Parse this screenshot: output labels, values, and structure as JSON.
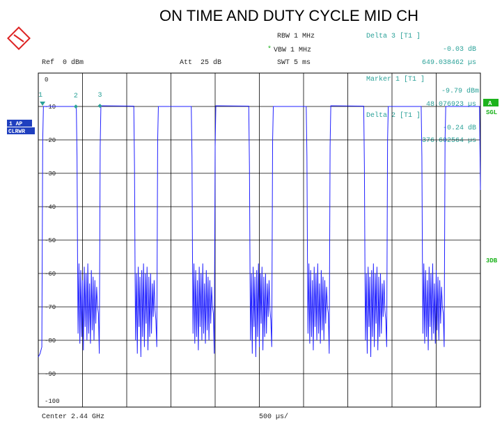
{
  "chart_data": {
    "type": "line",
    "title": "ON TIME AND DUTY CYCLE MID CH",
    "xlim": [
      0,
      5000
    ],
    "xticks": [
      0,
      500,
      1000,
      1500,
      2000,
      2500,
      3000,
      3500,
      4000,
      4500,
      5000
    ],
    "ylim": [
      -100,
      0
    ],
    "yticks": [
      0,
      -10,
      -20,
      -30,
      -40,
      -50,
      -60,
      -70,
      -80,
      -90,
      -100
    ],
    "grid": true,
    "x": [
      0,
      20,
      40,
      50,
      58,
      430,
      438,
      445,
      450,
      460,
      470,
      480,
      490,
      500,
      510,
      520,
      530,
      540,
      550,
      560,
      570,
      580,
      590,
      600,
      610,
      620,
      630,
      640,
      650,
      660,
      670,
      680,
      690,
      700,
      708,
      1080,
      1088,
      1095,
      1100,
      1110,
      1120,
      1130,
      1140,
      1150,
      1160,
      1170,
      1180,
      1190,
      1200,
      1210,
      1220,
      1230,
      1240,
      1250,
      1260,
      1270,
      1280,
      1290,
      1300,
      1310,
      1320,
      1330,
      1340,
      1350,
      1358,
      1730,
      1738,
      1745,
      1750,
      1760,
      1770,
      1780,
      1790,
      1800,
      1810,
      1820,
      1830,
      1840,
      1850,
      1860,
      1870,
      1880,
      1890,
      1900,
      1910,
      1920,
      1930,
      1940,
      1950,
      1960,
      1970,
      1980,
      1990,
      2000,
      2008,
      2380,
      2388,
      2395,
      2400,
      2410,
      2420,
      2430,
      2440,
      2450,
      2460,
      2470,
      2480,
      2490,
      2500,
      2510,
      2520,
      2530,
      2540,
      2550,
      2560,
      2570,
      2580,
      2590,
      2600,
      2610,
      2620,
      2630,
      2640,
      2650,
      2658,
      3030,
      3038,
      3045,
      3050,
      3060,
      3070,
      3080,
      3090,
      3100,
      3110,
      3120,
      3130,
      3140,
      3150,
      3160,
      3170,
      3180,
      3190,
      3200,
      3210,
      3220,
      3230,
      3240,
      3250,
      3260,
      3270,
      3280,
      3290,
      3300,
      3308,
      3680,
      3688,
      3695,
      3700,
      3710,
      3720,
      3730,
      3740,
      3750,
      3760,
      3770,
      3780,
      3790,
      3800,
      3810,
      3820,
      3830,
      3840,
      3850,
      3860,
      3870,
      3880,
      3890,
      3900,
      3910,
      3920,
      3930,
      3940,
      3950,
      3958,
      4330,
      4338,
      4345,
      4350,
      4360,
      4370,
      4380,
      4390,
      4400,
      4410,
      4420,
      4430,
      4440,
      4450,
      4460,
      4470,
      4480,
      4490,
      4500,
      4510,
      4520,
      4530,
      4540,
      4550,
      4560,
      4570,
      4580,
      4590,
      4600,
      4608,
      4990,
      5000
    ],
    "series": [
      {
        "color": "#1f1fff",
        "values": [
          -85,
          -84,
          -82,
          -20,
          -10,
          -10,
          -25,
          -60,
          -78,
          -57,
          -81,
          -59,
          -79,
          -62,
          -83,
          -58,
          -76,
          -60,
          -80,
          -57,
          -78,
          -63,
          -81,
          -59,
          -77,
          -61,
          -80,
          -62,
          -75,
          -64,
          -70,
          -72,
          -84,
          -22,
          -9.8,
          -9.9,
          -28,
          -62,
          -80,
          -60,
          -84,
          -58,
          -76,
          -61,
          -85,
          -59,
          -79,
          -57,
          -82,
          -60,
          -75,
          -58,
          -83,
          -61,
          -79,
          -60,
          -78,
          -63,
          -73,
          -62,
          -71,
          -74,
          -82,
          -20,
          -10,
          -10,
          -25,
          -60,
          -78,
          -57,
          -81,
          -59,
          -79,
          -62,
          -83,
          -58,
          -76,
          -60,
          -80,
          -57,
          -78,
          -63,
          -81,
          -59,
          -77,
          -61,
          -80,
          -62,
          -75,
          -64,
          -70,
          -72,
          -84,
          -22,
          -9.8,
          -9.9,
          -28,
          -62,
          -80,
          -60,
          -84,
          -58,
          -76,
          -61,
          -85,
          -59,
          -79,
          -57,
          -82,
          -60,
          -75,
          -58,
          -83,
          -61,
          -79,
          -60,
          -78,
          -63,
          -73,
          -62,
          -71,
          -74,
          -82,
          -20,
          -10,
          -10,
          -25,
          -60,
          -78,
          -57,
          -81,
          -59,
          -79,
          -62,
          -83,
          -58,
          -76,
          -60,
          -80,
          -57,
          -78,
          -63,
          -81,
          -59,
          -77,
          -61,
          -80,
          -62,
          -75,
          -64,
          -70,
          -72,
          -84,
          -22,
          -9.8,
          -9.9,
          -28,
          -62,
          -80,
          -60,
          -84,
          -58,
          -76,
          -61,
          -85,
          -59,
          -79,
          -57,
          -82,
          -60,
          -75,
          -58,
          -83,
          -61,
          -79,
          -60,
          -78,
          -63,
          -73,
          -62,
          -71,
          -74,
          -82,
          -20,
          -10,
          -10,
          -25,
          -60,
          -78,
          -57,
          -81,
          -59,
          -79,
          -62,
          -83,
          -58,
          -76,
          -60,
          -80,
          -57,
          -78,
          -63,
          -81,
          -59,
          -77,
          -61,
          -80,
          -62,
          -75,
          -64,
          -70,
          -72,
          -82,
          -20,
          -10,
          -10,
          -35
        ]
      }
    ],
    "markers": [
      {
        "label": "1",
        "x": 48.08,
        "y": -9.79
      },
      {
        "label": "2",
        "x": 424.68,
        "y": -10.03
      },
      {
        "label": "3",
        "x": 697.12,
        "y": -9.82
      }
    ],
    "marker_color": "#2aa198"
  },
  "readouts": {
    "rbw": "RBW 1 MHz",
    "vbw_star": "*",
    "vbw": "VBW 1 MHz",
    "swt": "SWT 5 ms",
    "ref": "Ref  0 dBm",
    "att": "Att  25 dB",
    "delta3": "Delta 3 [T1 ]",
    "delta3_level": "-0.03 dB",
    "delta3_time": "649.038462 µs",
    "marker1": "Marker 1 [T1 ]",
    "marker1_level": "-9.79 dBm",
    "marker1_time": "48.076923 µs",
    "delta2": "Delta 2 [T1 ]",
    "delta2_level": "-0.24 dB",
    "delta2_time": "376.602564 µs",
    "trace_mode": "1 AP",
    "trace_detector": "CLRWR",
    "side_a": "A",
    "side_sgl": "SGL",
    "side_3db": "3DB",
    "center": "Center 2.44 GHz",
    "span_div": "500 µs/"
  }
}
